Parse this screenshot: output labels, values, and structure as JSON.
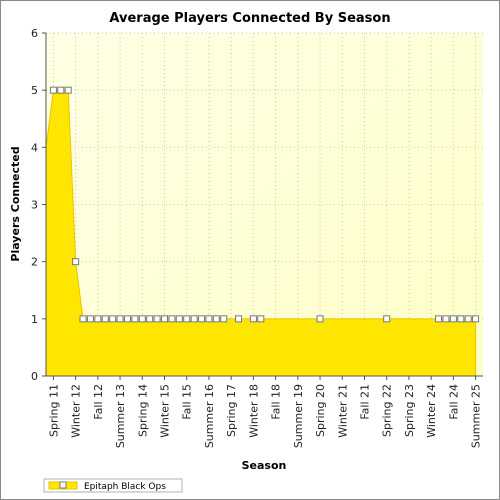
{
  "colors": {
    "area_fill": "#FFE600",
    "area_stroke": "#E8C400",
    "plot_bg_top": "#FFFFE6",
    "plot_bg_bottom": "#FFFFC8",
    "grid": "#C8C8A0",
    "marker_fill": "#FFFFFF",
    "marker_stroke": "#777777"
  },
  "chart_data": {
    "type": "area",
    "title": "Average Players Connected By Season",
    "xlabel": "Season",
    "ylabel": "Players Connected",
    "ylim": [
      0,
      6
    ],
    "yticks": [
      "0",
      "1",
      "2",
      "3",
      "4",
      "5",
      "6"
    ],
    "x_tick_labels": [
      "Spring 11",
      "Winter 12",
      "Fall 12",
      "Summer 13",
      "Spring 14",
      "Winter 15",
      "Fall 15",
      "Summer 16",
      "Spring 17",
      "Winter 18",
      "Fall 18",
      "Summer 19",
      "Spring 20",
      "Winter 21",
      "Fall 21",
      "Spring 22",
      "Spring 23",
      "Winter 24",
      "Fall 24",
      "Summer 25"
    ],
    "x_tick_positions": [
      1,
      4,
      7,
      10,
      13,
      16,
      19,
      22,
      25,
      28,
      31,
      34,
      37,
      40,
      43,
      46,
      49,
      52,
      55,
      58
    ],
    "x_range": [
      0,
      59
    ],
    "grid": true,
    "legend_position": "bottom-left",
    "series": [
      {
        "name": "Epitaph Black Ops",
        "points": [
          {
            "x": 0,
            "y": 4
          },
          {
            "x": 1,
            "y": 5
          },
          {
            "x": 2,
            "y": 5
          },
          {
            "x": 3,
            "y": 5
          },
          {
            "x": 4,
            "y": 2
          },
          {
            "x": 5,
            "y": 1
          },
          {
            "x": 6,
            "y": 1
          },
          {
            "x": 7,
            "y": 1
          },
          {
            "x": 8,
            "y": 1
          },
          {
            "x": 9,
            "y": 1
          },
          {
            "x": 10,
            "y": 1
          },
          {
            "x": 11,
            "y": 1
          },
          {
            "x": 12,
            "y": 1
          },
          {
            "x": 13,
            "y": 1
          },
          {
            "x": 14,
            "y": 1
          },
          {
            "x": 15,
            "y": 1
          },
          {
            "x": 16,
            "y": 1
          },
          {
            "x": 17,
            "y": 1
          },
          {
            "x": 18,
            "y": 1
          },
          {
            "x": 19,
            "y": 1
          },
          {
            "x": 20,
            "y": 1
          },
          {
            "x": 21,
            "y": 1
          },
          {
            "x": 22,
            "y": 1
          },
          {
            "x": 23,
            "y": 1
          },
          {
            "x": 24,
            "y": 1
          },
          {
            "x": 26,
            "y": 1
          },
          {
            "x": 28,
            "y": 1
          },
          {
            "x": 29,
            "y": 1
          },
          {
            "x": 37,
            "y": 1
          },
          {
            "x": 46,
            "y": 1
          },
          {
            "x": 53,
            "y": 1
          },
          {
            "x": 54,
            "y": 1
          },
          {
            "x": 55,
            "y": 1
          },
          {
            "x": 56,
            "y": 1
          },
          {
            "x": 57,
            "y": 1
          },
          {
            "x": 58,
            "y": 1
          }
        ],
        "markers_on_x": [
          1,
          2,
          3,
          4,
          5,
          6,
          7,
          8,
          9,
          10,
          11,
          12,
          13,
          14,
          15,
          16,
          17,
          18,
          19,
          20,
          21,
          22,
          23,
          24,
          26,
          28,
          29,
          37,
          46,
          53,
          54,
          55,
          56,
          57,
          58
        ]
      }
    ]
  }
}
